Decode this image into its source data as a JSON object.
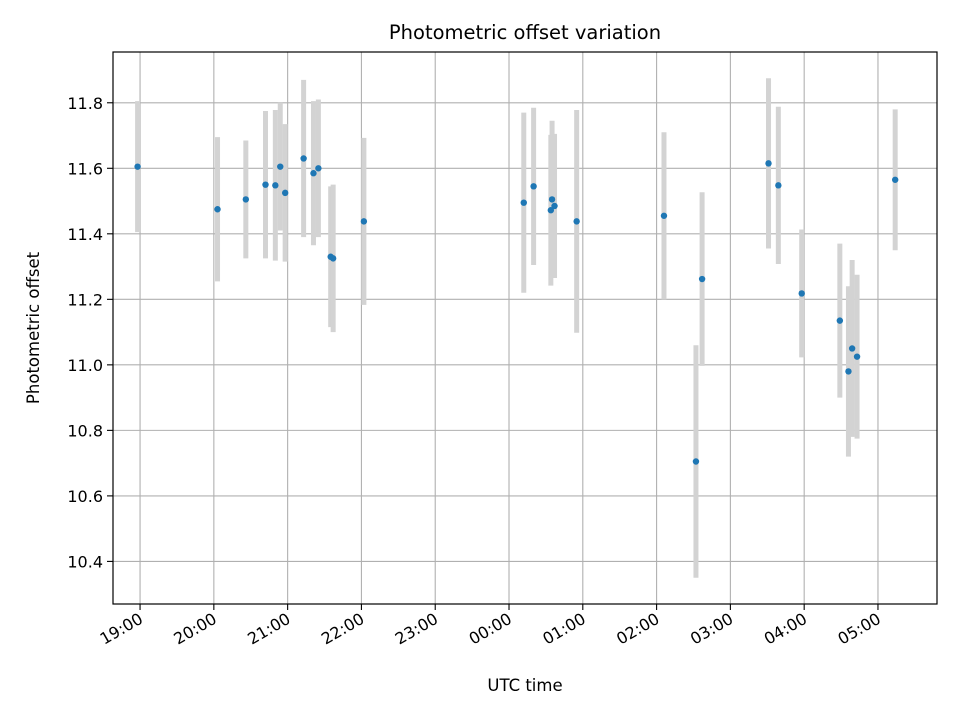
{
  "chart_data": {
    "type": "scatter",
    "title": "Photometric offset variation",
    "xlabel": "UTC time",
    "ylabel": "Photometric offset",
    "x_ticks": [
      "19:00",
      "20:00",
      "21:00",
      "22:00",
      "23:00",
      "00:00",
      "01:00",
      "02:00",
      "03:00",
      "04:00",
      "05:00"
    ],
    "y_ticks": [
      "10.4",
      "10.6",
      "10.8",
      "11.0",
      "11.2",
      "11.4",
      "11.6",
      "11.8"
    ],
    "xlim": [
      "18:38",
      "05:48"
    ],
    "ylim": [
      10.27,
      11.955
    ],
    "grid": true,
    "point_color": "#1f77b4",
    "errorbar_color": "#d3d3d3",
    "points": [
      {
        "x": "18:58",
        "y": 11.605,
        "err": 0.2
      },
      {
        "x": "20:03",
        "y": 11.475,
        "err": 0.22
      },
      {
        "x": "20:26",
        "y": 11.505,
        "err": 0.18
      },
      {
        "x": "20:42",
        "y": 11.55,
        "err": 0.225
      },
      {
        "x": "20:50",
        "y": 11.548,
        "err": 0.23
      },
      {
        "x": "20:54",
        "y": 11.605,
        "err": 0.195
      },
      {
        "x": "20:58",
        "y": 11.525,
        "err": 0.21
      },
      {
        "x": "21:13",
        "y": 11.63,
        "err": 0.24
      },
      {
        "x": "21:21",
        "y": 11.585,
        "err": 0.22
      },
      {
        "x": "21:25",
        "y": 11.6,
        "err": 0.21
      },
      {
        "x": "21:35",
        "y": 11.33,
        "err": 0.215
      },
      {
        "x": "21:37",
        "y": 11.325,
        "err": 0.225
      },
      {
        "x": "22:02",
        "y": 11.438,
        "err": 0.255
      },
      {
        "x": "00:12",
        "y": 11.495,
        "err": 0.275
      },
      {
        "x": "00:20",
        "y": 11.545,
        "err": 0.24
      },
      {
        "x": "00:34",
        "y": 11.472,
        "err": 0.23
      },
      {
        "x": "00:35",
        "y": 11.505,
        "err": 0.24
      },
      {
        "x": "00:37",
        "y": 11.485,
        "err": 0.22
      },
      {
        "x": "00:55",
        "y": 11.438,
        "err": 0.34
      },
      {
        "x": "02:06",
        "y": 11.455,
        "err": 0.255
      },
      {
        "x": "02:32",
        "y": 10.705,
        "err": 0.355
      },
      {
        "x": "02:37",
        "y": 11.262,
        "err": 0.265
      },
      {
        "x": "03:31",
        "y": 11.615,
        "err": 0.26
      },
      {
        "x": "03:39",
        "y": 11.548,
        "err": 0.24
      },
      {
        "x": "03:58",
        "y": 11.218,
        "err": 0.195
      },
      {
        "x": "04:29",
        "y": 11.135,
        "err": 0.235
      },
      {
        "x": "04:36",
        "y": 10.98,
        "err": 0.26
      },
      {
        "x": "04:39",
        "y": 11.05,
        "err": 0.27
      },
      {
        "x": "04:43",
        "y": 11.025,
        "err": 0.25
      },
      {
        "x": "05:14",
        "y": 11.565,
        "err": 0.215
      }
    ]
  }
}
